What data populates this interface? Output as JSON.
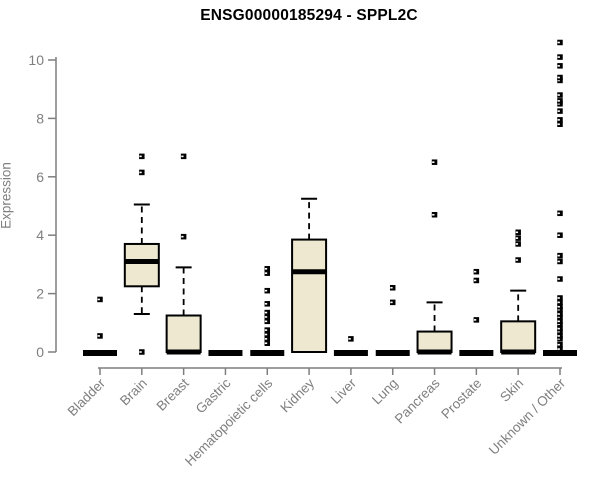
{
  "chart_data": {
    "type": "boxplot",
    "title": "ENSG00000185294 - SPPL2C",
    "ylabel": "Expression",
    "xlabel": "",
    "ylim": [
      0,
      10.7
    ],
    "yticks": [
      0,
      2,
      4,
      6,
      8,
      10
    ],
    "grid": false,
    "legend": false,
    "colors": {
      "box_fill": "#ede8cf",
      "box_stroke": "#000000",
      "median": "#000000",
      "outlier": "#000000",
      "axis": "#7f7f7f",
      "tick_label": "#7f7f7f",
      "title": "#000000"
    },
    "categories": [
      "Bladder",
      "Brain",
      "Breast",
      "Gastric",
      "Hematopoietic cells",
      "Kidney",
      "Liver",
      "Lung",
      "Pancreas",
      "Prostate",
      "Skin",
      "Unknown / Other"
    ],
    "boxes": [
      {
        "category": "Bladder",
        "low": 0,
        "q1": 0,
        "median": 0,
        "q3": 0,
        "high": 0,
        "outliers": [
          0.55,
          1.8
        ]
      },
      {
        "category": "Brain",
        "low": 1.3,
        "q1": 2.25,
        "median": 3.1,
        "q3": 3.7,
        "high": 5.05,
        "outliers": [
          0,
          6.15,
          6.7
        ]
      },
      {
        "category": "Breast",
        "low": 0,
        "q1": 0,
        "median": 0,
        "q3": 1.25,
        "high": 2.9,
        "outliers": [
          3.95,
          6.7
        ]
      },
      {
        "category": "Gastric",
        "low": 0,
        "q1": 0,
        "median": 0,
        "q3": 0,
        "high": 0,
        "outliers": []
      },
      {
        "category": "Hematopoietic cells",
        "low": 0,
        "q1": 0,
        "median": 0,
        "q3": 0,
        "high": 0,
        "outliers": [
          0.3,
          0.45,
          0.6,
          0.75,
          1.05,
          1.2,
          1.35,
          1.65,
          2.1,
          2.7,
          2.85
        ]
      },
      {
        "category": "Kidney",
        "low": 0,
        "q1": 0,
        "median": 2.75,
        "q3": 3.85,
        "high": 5.25,
        "outliers": []
      },
      {
        "category": "Liver",
        "low": 0,
        "q1": 0,
        "median": 0,
        "q3": 0,
        "high": 0,
        "outliers": [
          0.45
        ]
      },
      {
        "category": "Lung",
        "low": 0,
        "q1": 0,
        "median": 0,
        "q3": 0,
        "high": 0,
        "outliers": [
          1.7,
          2.2
        ]
      },
      {
        "category": "Pancreas",
        "low": 0,
        "q1": 0,
        "median": 0,
        "q3": 0.7,
        "high": 1.7,
        "outliers": [
          4.7,
          6.5
        ]
      },
      {
        "category": "Prostate",
        "low": 0,
        "q1": 0,
        "median": 0,
        "q3": 0,
        "high": 0,
        "outliers": [
          1.1,
          2.45,
          2.75
        ]
      },
      {
        "category": "Skin",
        "low": 0,
        "q1": 0,
        "median": 0,
        "q3": 1.05,
        "high": 2.1,
        "outliers": [
          3.15,
          3.7,
          3.9,
          4.1
        ]
      },
      {
        "category": "Unknown / Other",
        "low": 0,
        "q1": 0,
        "median": 0,
        "q3": 0,
        "high": 0,
        "outliers": [
          0.1,
          0.25,
          0.45,
          0.55,
          0.7,
          0.8,
          0.95,
          1.05,
          1.2,
          1.3,
          1.45,
          1.55,
          1.7,
          1.85,
          2.5,
          3.1,
          3.3,
          4.0,
          4.75,
          7.8,
          7.95,
          8.25,
          8.5,
          8.6,
          8.8,
          9.3,
          9.4,
          9.8,
          10.1,
          10.6
        ]
      }
    ]
  }
}
